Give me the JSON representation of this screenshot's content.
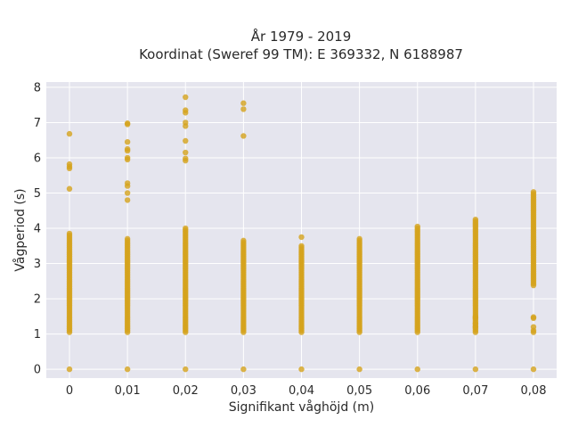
{
  "chart_data": {
    "type": "scatter",
    "title_line1": "År 1979 - 2019",
    "title_line2": "Koordinat (Sweref 99 TM): E 369332, N 6188987",
    "xlabel": "Signifikant våghöjd (m)",
    "ylabel": "Vågperiod (s)",
    "x_categories": [
      "0",
      "0,01",
      "0,02",
      "0,03",
      "0,04",
      "0,05",
      "0,06",
      "0,07",
      "0,08"
    ],
    "x_values": [
      0,
      0.01,
      0.02,
      0.03,
      0.04,
      0.05,
      0.06,
      0.07,
      0.08
    ],
    "y_ticks": [
      "0",
      "1",
      "2",
      "3",
      "4",
      "5",
      "6",
      "7",
      "8"
    ],
    "ylim": [
      -0.25,
      8.15
    ],
    "grid": true,
    "point_color": "#d4a21c",
    "background_color": "#e5e5ee",
    "series": [
      {
        "points_by_x": [
          {
            "x": 0,
            "zero": true,
            "continuous": [
              1.05,
              3.85
            ],
            "outliers": [
              5.12,
              5.7,
              5.75,
              5.82,
              6.68
            ]
          },
          {
            "x": 0.01,
            "zero": true,
            "continuous": [
              1.05,
              3.7
            ],
            "outliers": [
              4.8,
              5.0,
              5.2,
              5.28,
              5.95,
              6.0,
              6.2,
              6.25,
              6.45,
              6.95,
              6.98
            ]
          },
          {
            "x": 0.02,
            "zero": true,
            "continuous": [
              1.05,
              4.02
            ],
            "outliers": [
              5.92,
              5.98,
              6.15,
              6.48,
              6.9,
              7.0,
              7.28,
              7.35,
              7.72
            ]
          },
          {
            "x": 0.03,
            "zero": true,
            "continuous": [
              1.05,
              3.65
            ],
            "outliers": [
              6.62,
              7.38,
              7.55
            ]
          },
          {
            "x": 0.04,
            "zero": true,
            "continuous": [
              1.05,
              3.5
            ],
            "outliers": [
              3.75
            ]
          },
          {
            "x": 0.05,
            "zero": true,
            "continuous": [
              1.05,
              3.72
            ],
            "outliers": []
          },
          {
            "x": 0.06,
            "zero": true,
            "continuous": [
              1.05,
              4.08
            ],
            "outliers": []
          },
          {
            "x": 0.07,
            "zero": true,
            "continuous": [
              1.05,
              4.25
            ],
            "outliers": [
              1.2,
              1.3,
              1.45,
              1.5
            ]
          },
          {
            "x": 0.08,
            "zero": true,
            "continuous": [
              2.38,
              5.05
            ],
            "outliers": [
              1.05,
              1.1,
              1.2,
              1.45,
              1.48
            ]
          }
        ]
      }
    ]
  }
}
